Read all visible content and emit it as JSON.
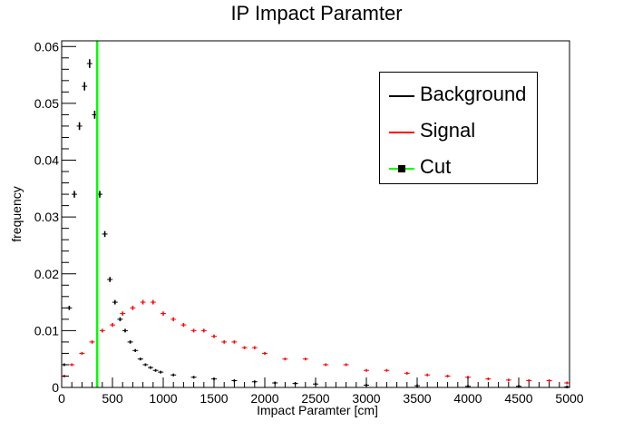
{
  "chart_data": {
    "type": "line",
    "title": "IP Impact Paramter",
    "xlabel": "Impact Paramter [cm]",
    "ylabel": "frequency",
    "xlim": [
      0,
      5000
    ],
    "ylim": [
      0,
      0.061
    ],
    "x_ticks": [
      "0",
      "500",
      "1000",
      "1500",
      "2000",
      "2500",
      "3000",
      "3500",
      "4000",
      "4500",
      "5000"
    ],
    "y_ticks": [
      "0",
      "0.01",
      "0.02",
      "0.03",
      "0.04",
      "0.05",
      "0.06"
    ],
    "legend_position": "top-right",
    "cut_x": 350,
    "series": [
      {
        "name": "Background",
        "color": "#000000",
        "x": [
          25,
          75,
          125,
          175,
          225,
          275,
          325,
          375,
          425,
          475,
          525,
          575,
          625,
          675,
          725,
          775,
          825,
          875,
          925,
          975,
          1100,
          1300,
          1500,
          1700,
          1900,
          2100,
          2300,
          2500,
          3000,
          3500,
          4000,
          4500,
          4975
        ],
        "y": [
          0.004,
          0.014,
          0.034,
          0.046,
          0.053,
          0.057,
          0.048,
          0.034,
          0.027,
          0.019,
          0.015,
          0.012,
          0.01,
          0.008,
          0.0065,
          0.005,
          0.004,
          0.0035,
          0.003,
          0.0027,
          0.0022,
          0.0018,
          0.0015,
          0.0012,
          0.001,
          0.0008,
          0.0007,
          0.0006,
          0.0004,
          0.0003,
          0.0002,
          0.0002,
          0.0001
        ]
      },
      {
        "name": "Signal",
        "color": "#ff0000",
        "x": [
          25,
          100,
          200,
          300,
          400,
          500,
          600,
          700,
          800,
          900,
          1000,
          1100,
          1200,
          1300,
          1400,
          1500,
          1600,
          1700,
          1800,
          1900,
          2000,
          2200,
          2400,
          2600,
          2800,
          3000,
          3200,
          3400,
          3600,
          3800,
          4000,
          4200,
          4400,
          4600,
          4800,
          4975
        ],
        "y": [
          0.002,
          0.004,
          0.006,
          0.008,
          0.01,
          0.011,
          0.013,
          0.014,
          0.015,
          0.015,
          0.013,
          0.012,
          0.011,
          0.01,
          0.01,
          0.009,
          0.008,
          0.008,
          0.007,
          0.007,
          0.006,
          0.005,
          0.005,
          0.004,
          0.004,
          0.003,
          0.003,
          0.0025,
          0.0022,
          0.002,
          0.0018,
          0.0015,
          0.0013,
          0.0012,
          0.0012,
          0.0008
        ]
      }
    ]
  },
  "legend": {
    "items": [
      {
        "label": "Background",
        "color": "#000000",
        "marker": false
      },
      {
        "label": "Signal",
        "color": "#ff0000",
        "marker": false
      },
      {
        "label": "Cut",
        "color": "#00ff00",
        "marker": true
      }
    ]
  }
}
